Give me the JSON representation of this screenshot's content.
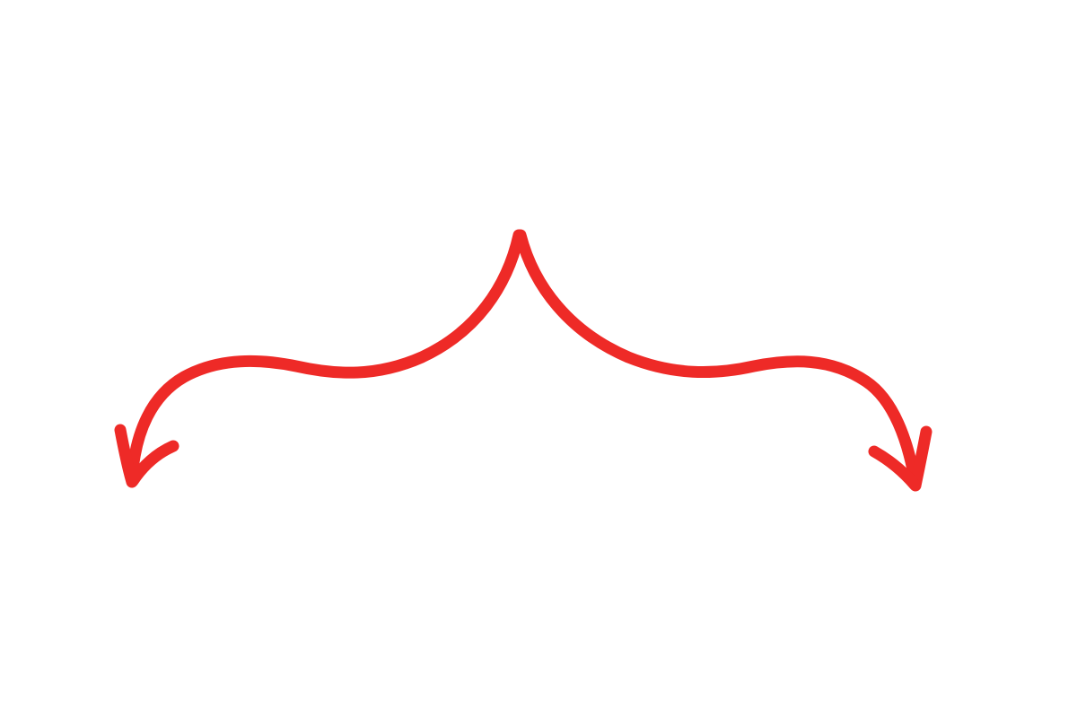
{
  "illustration": {
    "subject": "double-arrow",
    "style": "hand-drawn",
    "colors": {
      "background": "#ffffff",
      "arrow": "#ee2a27"
    }
  }
}
